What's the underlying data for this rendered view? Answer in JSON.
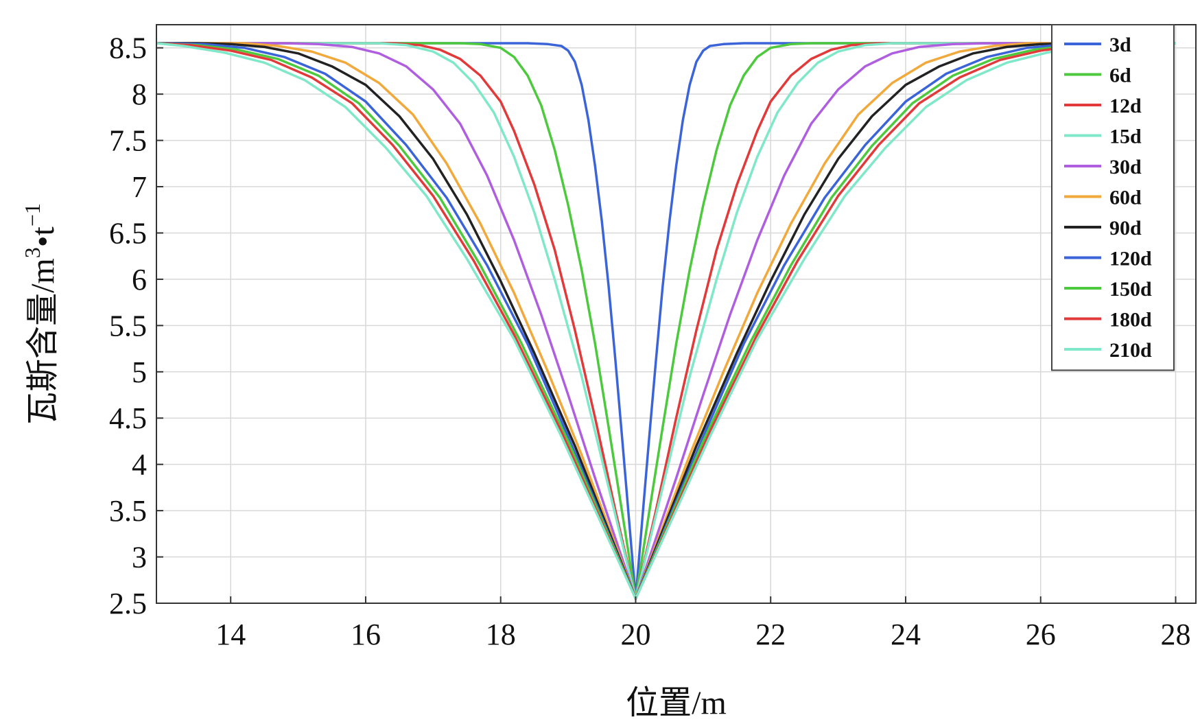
{
  "chart_data": {
    "type": "line",
    "title": "",
    "xlabel": "位置/m",
    "ylabel": {
      "main": "瓦斯含量/m",
      "sup1": "3",
      "mid": "•t",
      "sup2": "−1"
    },
    "xlim": [
      12.9,
      28.3
    ],
    "ylim": [
      2.5,
      8.75
    ],
    "xticks": [
      14,
      16,
      18,
      20,
      22,
      24,
      26,
      28
    ],
    "yticks": [
      2.5,
      3,
      3.5,
      4,
      4.5,
      5,
      5.5,
      6,
      6.5,
      7,
      7.5,
      8,
      8.5
    ],
    "xtick_labels": [
      "14",
      "16",
      "18",
      "20",
      "22",
      "24",
      "26",
      "28"
    ],
    "ytick_labels": [
      "2.5",
      "3",
      "3.5",
      "4",
      "4.5",
      "5",
      "5.5",
      "6",
      "6.5",
      "7",
      "7.5",
      "8",
      "8.5"
    ],
    "grid": true,
    "legend_position": "top-right",
    "center_x": 20,
    "min_value": 2.55,
    "max_value": 8.55,
    "series": [
      {
        "name": "3d",
        "color": "#3b64d9",
        "points": [
          [
            0,
            2.55
          ],
          [
            0.1,
            3.42
          ],
          [
            0.2,
            4.28
          ],
          [
            0.3,
            5.12
          ],
          [
            0.4,
            5.92
          ],
          [
            0.5,
            6.62
          ],
          [
            0.6,
            7.22
          ],
          [
            0.7,
            7.72
          ],
          [
            0.8,
            8.1
          ],
          [
            0.9,
            8.35
          ],
          [
            1.0,
            8.47
          ],
          [
            1.1,
            8.52
          ],
          [
            1.3,
            8.54
          ],
          [
            1.6,
            8.55
          ],
          [
            8.0,
            8.55
          ]
        ]
      },
      {
        "name": "6d",
        "color": "#4cc93c",
        "points": [
          [
            0,
            2.55
          ],
          [
            0.2,
            3.48
          ],
          [
            0.4,
            4.4
          ],
          [
            0.6,
            5.3
          ],
          [
            0.8,
            6.1
          ],
          [
            1.0,
            6.8
          ],
          [
            1.2,
            7.4
          ],
          [
            1.4,
            7.88
          ],
          [
            1.6,
            8.2
          ],
          [
            1.8,
            8.4
          ],
          [
            2.0,
            8.5
          ],
          [
            2.3,
            8.54
          ],
          [
            2.6,
            8.55
          ],
          [
            8.0,
            8.55
          ]
        ]
      },
      {
        "name": "12d",
        "color": "#e23a3a",
        "points": [
          [
            0,
            2.55
          ],
          [
            0.3,
            3.5
          ],
          [
            0.6,
            4.5
          ],
          [
            0.9,
            5.45
          ],
          [
            1.2,
            6.32
          ],
          [
            1.5,
            7.02
          ],
          [
            1.8,
            7.6
          ],
          [
            2.0,
            7.92
          ],
          [
            2.3,
            8.2
          ],
          [
            2.6,
            8.38
          ],
          [
            2.9,
            8.48
          ],
          [
            3.2,
            8.53
          ],
          [
            3.6,
            8.55
          ],
          [
            8.0,
            8.55
          ]
        ]
      },
      {
        "name": "15d",
        "color": "#7fe8c8",
        "points": [
          [
            0,
            2.55
          ],
          [
            0.4,
            3.75
          ],
          [
            0.8,
            4.95
          ],
          [
            1.2,
            6.0
          ],
          [
            1.5,
            6.72
          ],
          [
            1.8,
            7.32
          ],
          [
            2.1,
            7.8
          ],
          [
            2.4,
            8.12
          ],
          [
            2.7,
            8.34
          ],
          [
            3.0,
            8.46
          ],
          [
            3.4,
            8.53
          ],
          [
            3.8,
            8.55
          ],
          [
            8.0,
            8.55
          ]
        ]
      },
      {
        "name": "30d",
        "color": "#b05ee0",
        "points": [
          [
            0,
            2.55
          ],
          [
            0.6,
            3.85
          ],
          [
            1.0,
            4.75
          ],
          [
            1.4,
            5.62
          ],
          [
            1.8,
            6.42
          ],
          [
            2.2,
            7.12
          ],
          [
            2.6,
            7.68
          ],
          [
            3.0,
            8.05
          ],
          [
            3.4,
            8.3
          ],
          [
            3.8,
            8.44
          ],
          [
            4.2,
            8.51
          ],
          [
            4.7,
            8.54
          ],
          [
            5.2,
            8.55
          ],
          [
            8.0,
            8.55
          ]
        ]
      },
      {
        "name": "60d",
        "color": "#f2a93b",
        "points": [
          [
            0,
            2.55
          ],
          [
            0.8,
            4.1
          ],
          [
            1.3,
            5.0
          ],
          [
            1.8,
            5.85
          ],
          [
            2.3,
            6.6
          ],
          [
            2.8,
            7.25
          ],
          [
            3.3,
            7.78
          ],
          [
            3.8,
            8.12
          ],
          [
            4.3,
            8.34
          ],
          [
            4.8,
            8.46
          ],
          [
            5.3,
            8.52
          ],
          [
            5.8,
            8.55
          ],
          [
            8.0,
            8.55
          ]
        ]
      },
      {
        "name": "90d",
        "color": "#222222",
        "points": [
          [
            0,
            2.55
          ],
          [
            0.9,
            4.2
          ],
          [
            1.5,
            5.2
          ],
          [
            2.0,
            5.98
          ],
          [
            2.5,
            6.7
          ],
          [
            3.0,
            7.3
          ],
          [
            3.5,
            7.76
          ],
          [
            4.0,
            8.1
          ],
          [
            4.5,
            8.3
          ],
          [
            5.0,
            8.44
          ],
          [
            5.5,
            8.51
          ],
          [
            6.0,
            8.54
          ],
          [
            6.5,
            8.55
          ],
          [
            8.0,
            8.55
          ]
        ]
      },
      {
        "name": "120d",
        "color": "#3b64d9",
        "points": [
          [
            0,
            2.55
          ],
          [
            1.0,
            4.3
          ],
          [
            1.6,
            5.3
          ],
          [
            2.2,
            6.15
          ],
          [
            2.8,
            6.88
          ],
          [
            3.4,
            7.45
          ],
          [
            4.0,
            7.92
          ],
          [
            4.6,
            8.22
          ],
          [
            5.2,
            8.4
          ],
          [
            5.8,
            8.5
          ],
          [
            6.4,
            8.54
          ],
          [
            7.0,
            8.55
          ],
          [
            8.0,
            8.55
          ]
        ]
      },
      {
        "name": "150d",
        "color": "#4cc93c",
        "points": [
          [
            0,
            2.55
          ],
          [
            1.0,
            4.25
          ],
          [
            1.7,
            5.32
          ],
          [
            2.3,
            6.15
          ],
          [
            2.9,
            6.88
          ],
          [
            3.5,
            7.44
          ],
          [
            4.1,
            7.9
          ],
          [
            4.7,
            8.2
          ],
          [
            5.3,
            8.38
          ],
          [
            5.9,
            8.48
          ],
          [
            6.5,
            8.53
          ],
          [
            7.1,
            8.55
          ],
          [
            8.0,
            8.55
          ]
        ]
      },
      {
        "name": "180d",
        "color": "#e23a3a",
        "points": [
          [
            0,
            2.55
          ],
          [
            1.1,
            4.35
          ],
          [
            1.8,
            5.4
          ],
          [
            2.4,
            6.2
          ],
          [
            3.0,
            6.9
          ],
          [
            3.6,
            7.45
          ],
          [
            4.2,
            7.9
          ],
          [
            4.8,
            8.18
          ],
          [
            5.4,
            8.37
          ],
          [
            6.0,
            8.47
          ],
          [
            6.6,
            8.53
          ],
          [
            7.2,
            8.55
          ],
          [
            8.0,
            8.55
          ]
        ]
      },
      {
        "name": "210d",
        "color": "#7fe8c8",
        "points": [
          [
            0,
            2.55
          ],
          [
            1.1,
            4.3
          ],
          [
            1.8,
            5.35
          ],
          [
            2.5,
            6.22
          ],
          [
            3.1,
            6.9
          ],
          [
            3.7,
            7.42
          ],
          [
            4.3,
            7.86
          ],
          [
            4.9,
            8.15
          ],
          [
            5.5,
            8.34
          ],
          [
            6.1,
            8.45
          ],
          [
            6.7,
            8.52
          ],
          [
            7.3,
            8.55
          ],
          [
            8.0,
            8.55
          ]
        ]
      }
    ]
  }
}
